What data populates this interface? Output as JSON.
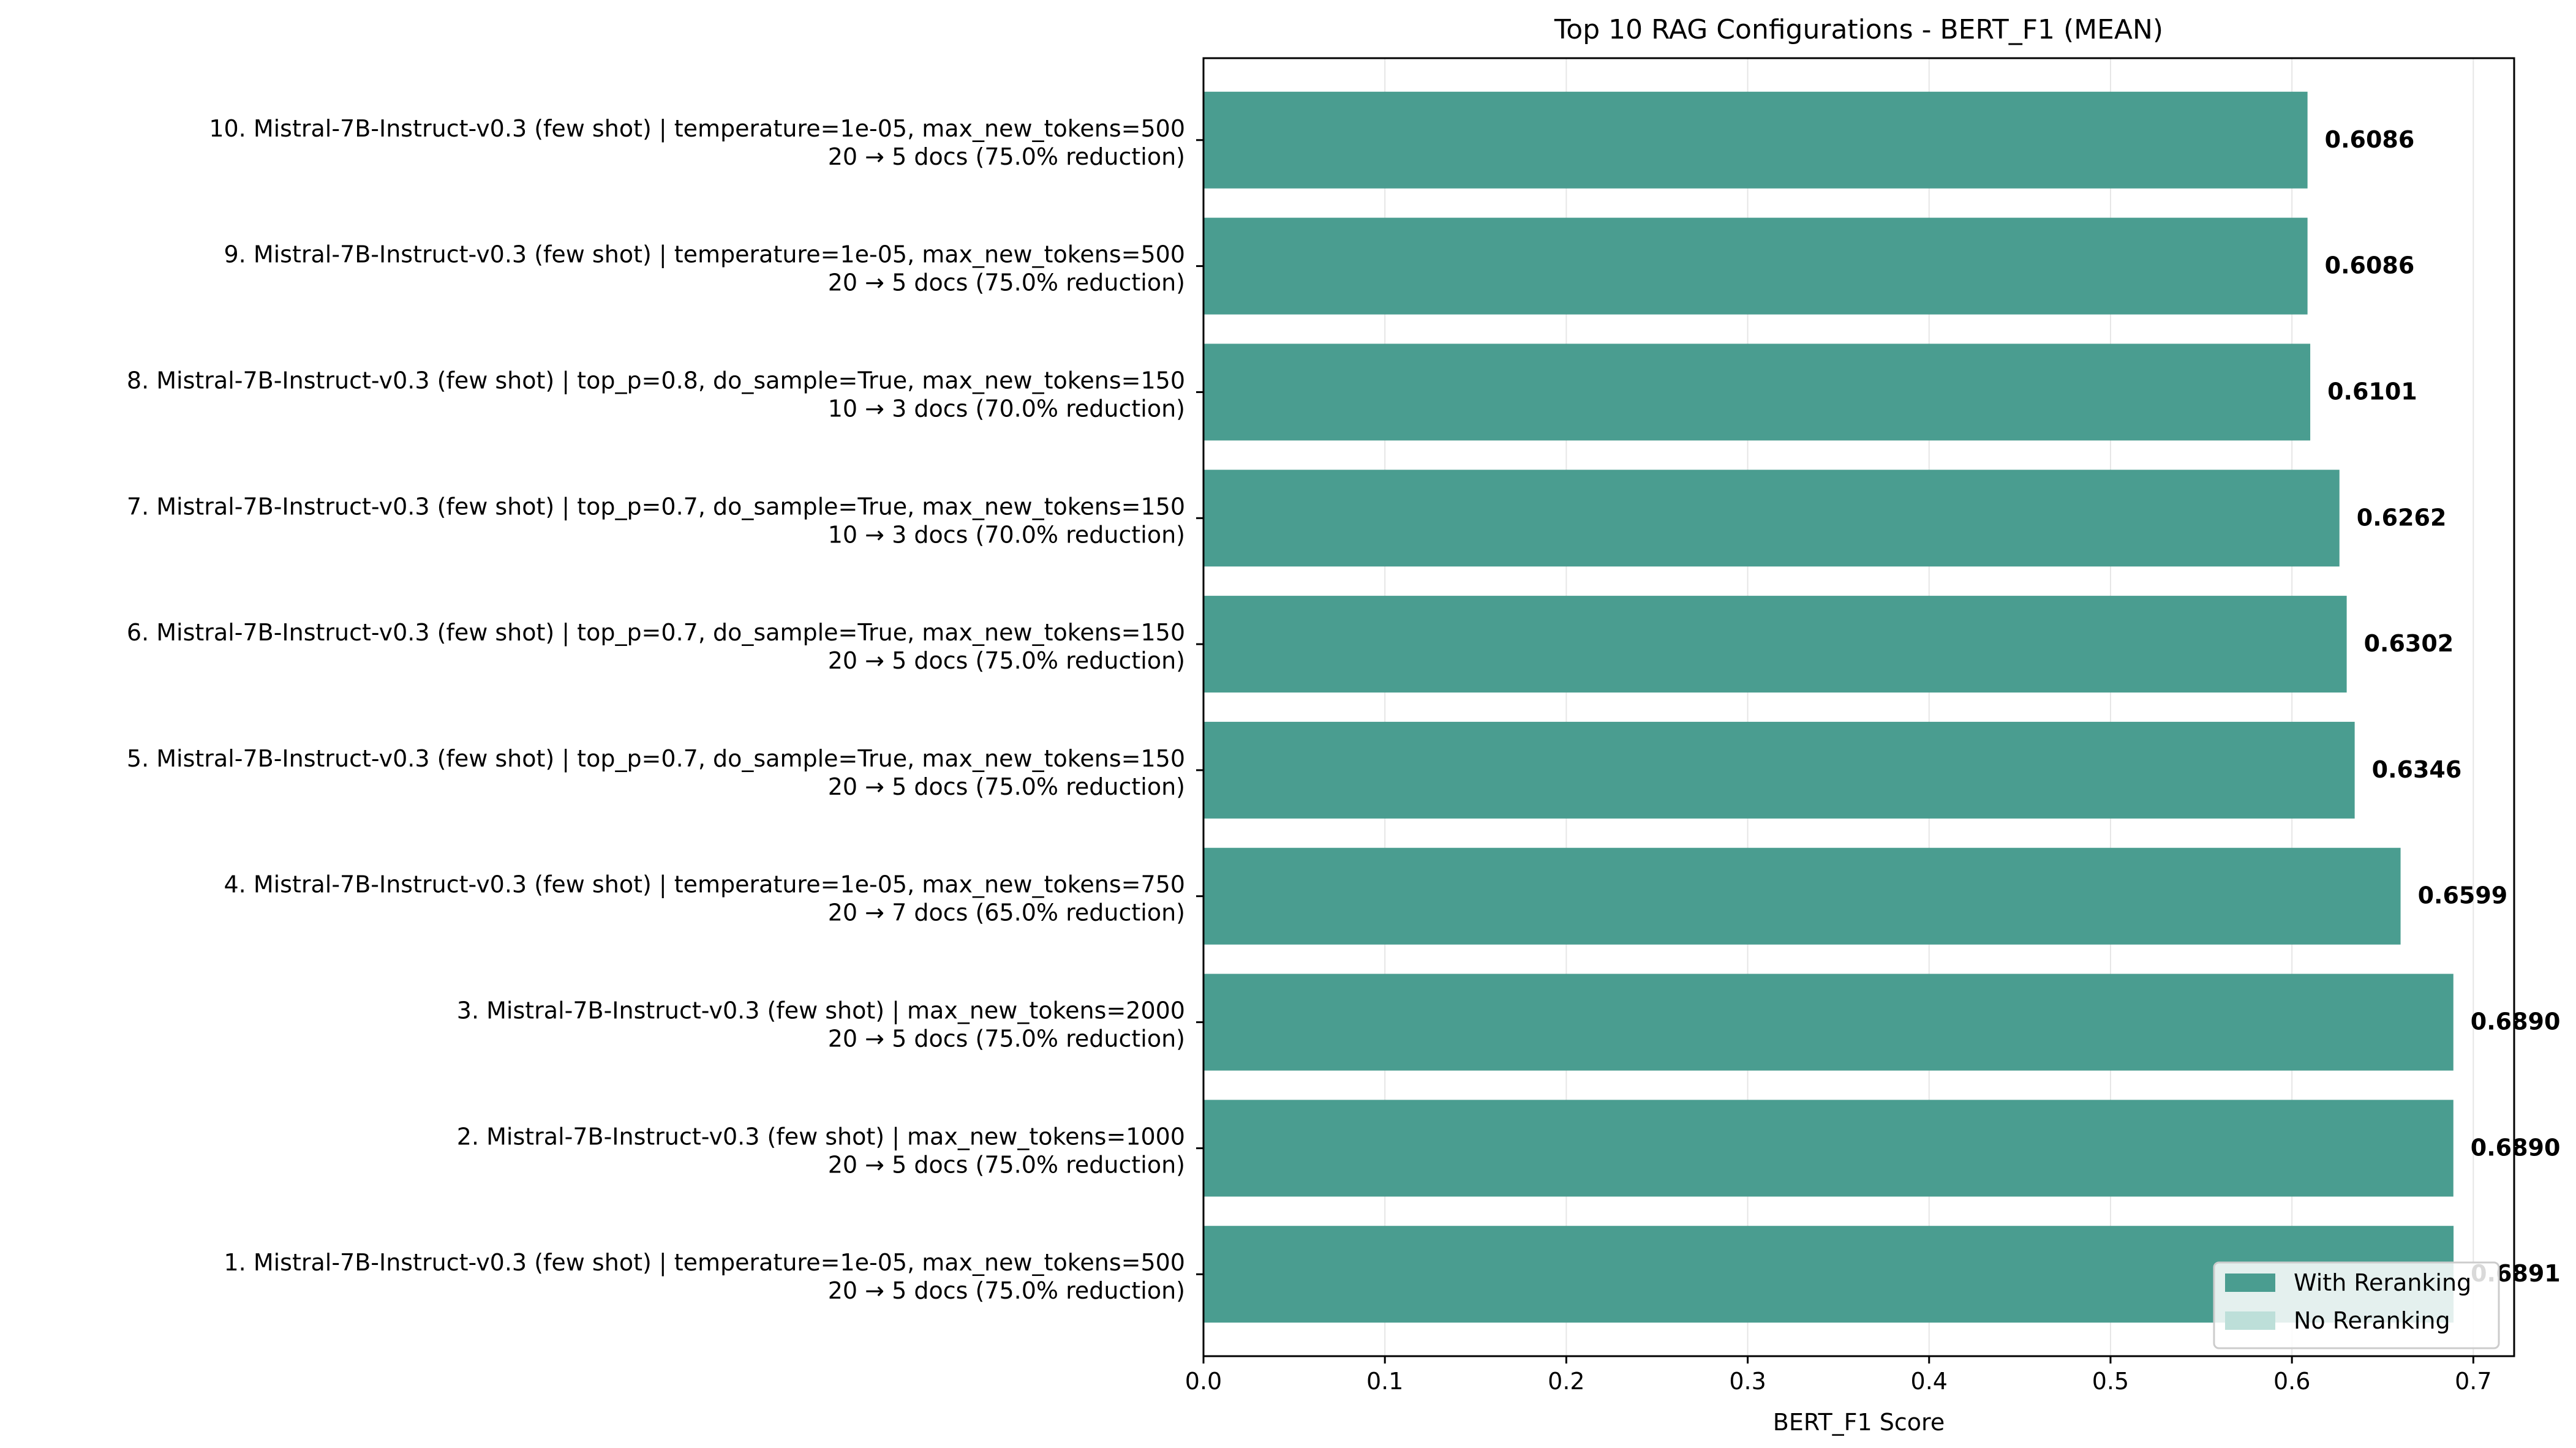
{
  "chart_data": {
    "type": "bar",
    "orientation": "horizontal",
    "title": "Top 10 RAG Configurations - BERT_F1 (MEAN)",
    "xlabel": "BERT_F1 Score",
    "ylabel": "",
    "xlim": [
      0,
      0.7225
    ],
    "xticks": [
      "0.0",
      "0.1",
      "0.2",
      "0.3",
      "0.4",
      "0.5",
      "0.6",
      "0.7"
    ],
    "grid": "vertical",
    "legend_position": "bottom-right",
    "colors": {
      "with_reranking": "#4a9d90",
      "no_reranking": "#bddfd9"
    },
    "legend": [
      "With Reranking",
      "No Reranking"
    ],
    "bars": [
      {
        "label_line1": "10. Mistral-7B-Instruct-v0.3 (few shot) | temperature=1e-05, max_new_tokens=500",
        "label_line2": "20 → 5 docs (75.0% reduction)",
        "value": 0.6086,
        "value_label": "0.6086",
        "reranking": true
      },
      {
        "label_line1": "9. Mistral-7B-Instruct-v0.3 (few shot) | temperature=1e-05, max_new_tokens=500",
        "label_line2": "20 → 5 docs (75.0% reduction)",
        "value": 0.6086,
        "value_label": "0.6086",
        "reranking": true
      },
      {
        "label_line1": "8. Mistral-7B-Instruct-v0.3 (few shot) | top_p=0.8, do_sample=True, max_new_tokens=150",
        "label_line2": "10 → 3 docs (70.0% reduction)",
        "value": 0.6101,
        "value_label": "0.6101",
        "reranking": true
      },
      {
        "label_line1": "7. Mistral-7B-Instruct-v0.3 (few shot) | top_p=0.7, do_sample=True, max_new_tokens=150",
        "label_line2": "10 → 3 docs (70.0% reduction)",
        "value": 0.6262,
        "value_label": "0.6262",
        "reranking": true
      },
      {
        "label_line1": "6. Mistral-7B-Instruct-v0.3 (few shot) | top_p=0.7, do_sample=True, max_new_tokens=150",
        "label_line2": "20 → 5 docs (75.0% reduction)",
        "value": 0.6302,
        "value_label": "0.6302",
        "reranking": true
      },
      {
        "label_line1": "5. Mistral-7B-Instruct-v0.3 (few shot) | top_p=0.7, do_sample=True, max_new_tokens=150",
        "label_line2": "20 → 5 docs (75.0% reduction)",
        "value": 0.6346,
        "value_label": "0.6346",
        "reranking": true
      },
      {
        "label_line1": "4. Mistral-7B-Instruct-v0.3 (few shot) | temperature=1e-05, max_new_tokens=750",
        "label_line2": "20 → 7 docs (65.0% reduction)",
        "value": 0.6599,
        "value_label": "0.6599",
        "reranking": true
      },
      {
        "label_line1": "3. Mistral-7B-Instruct-v0.3 (few shot) | max_new_tokens=2000",
        "label_line2": "20 → 5 docs (75.0% reduction)",
        "value": 0.689,
        "value_label": "0.6890",
        "reranking": true
      },
      {
        "label_line1": "2. Mistral-7B-Instruct-v0.3 (few shot) | max_new_tokens=1000",
        "label_line2": "20 → 5 docs (75.0% reduction)",
        "value": 0.689,
        "value_label": "0.6890",
        "reranking": true
      },
      {
        "label_line1": "1. Mistral-7B-Instruct-v0.3 (few shot) | temperature=1e-05, max_new_tokens=500",
        "label_line2": "20 → 5 docs (75.0% reduction)",
        "value": 0.6891,
        "value_label": "0.6891",
        "reranking": true
      }
    ]
  }
}
